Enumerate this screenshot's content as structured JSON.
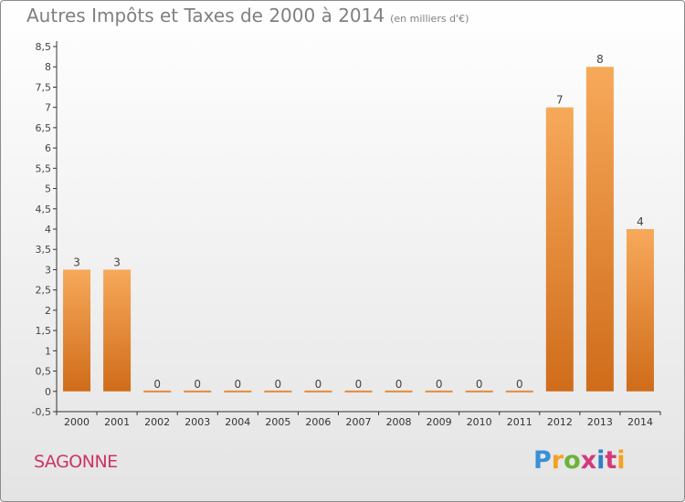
{
  "chart_data": {
    "type": "bar",
    "title": "Autres Impôts et Taxes de 2000 à 2014",
    "subtitle": "(en milliers d'€)",
    "categories": [
      "2000",
      "2001",
      "2002",
      "2003",
      "2004",
      "2005",
      "2006",
      "2007",
      "2008",
      "2009",
      "2010",
      "2011",
      "2012",
      "2013",
      "2014"
    ],
    "values": [
      3,
      3,
      0,
      0,
      0,
      0,
      0,
      0,
      0,
      0,
      0,
      0,
      7,
      8,
      4
    ],
    "ylim": [
      -0.5,
      8.5
    ],
    "yticks": [
      "-0,5",
      "0",
      "0,5",
      "1",
      "1,5",
      "2",
      "2,5",
      "3",
      "3,5",
      "4",
      "4,5",
      "5",
      "5,5",
      "6",
      "6,5",
      "7",
      "7,5",
      "8",
      "8,5"
    ],
    "ytick_values": [
      -0.5,
      0,
      0.5,
      1,
      1.5,
      2,
      2.5,
      3,
      3.5,
      4,
      4.5,
      5,
      5.5,
      6,
      6.5,
      7,
      7.5,
      8,
      8.5
    ],
    "grid": false,
    "bar_color_top": "#f7a95a",
    "bar_color_bottom": "#cf6c1a"
  },
  "footer": {
    "commune": "SAGONNE",
    "logo": "Proxiti"
  }
}
